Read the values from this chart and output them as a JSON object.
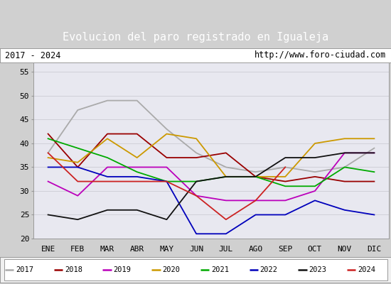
{
  "title": "Evolucion del paro registrado en Igualeja",
  "subtitle_left": "2017 - 2024",
  "subtitle_right": "http://www.foro-ciudad.com",
  "months": [
    "ENE",
    "FEB",
    "MAR",
    "ABR",
    "MAY",
    "JUN",
    "JUL",
    "AGO",
    "SEP",
    "OCT",
    "NOV",
    "DIC"
  ],
  "ylim": [
    20,
    57
  ],
  "yticks": [
    20,
    25,
    30,
    35,
    40,
    45,
    50,
    55
  ],
  "series": {
    "2017": {
      "color": "#aaaaaa",
      "values": [
        38,
        47,
        49,
        49,
        43,
        38,
        35,
        34,
        35,
        34,
        35,
        39
      ]
    },
    "2018": {
      "color": "#990000",
      "values": [
        42,
        35,
        42,
        42,
        37,
        37,
        38,
        33,
        32,
        33,
        32,
        32
      ]
    },
    "2019": {
      "color": "#bb00bb",
      "values": [
        32,
        29,
        35,
        35,
        35,
        29,
        28,
        28,
        28,
        30,
        38,
        38
      ]
    },
    "2020": {
      "color": "#cc9900",
      "values": [
        37,
        36,
        41,
        37,
        42,
        41,
        33,
        33,
        33,
        40,
        41,
        41
      ]
    },
    "2021": {
      "color": "#00aa00",
      "values": [
        41,
        39,
        37,
        34,
        32,
        32,
        33,
        33,
        31,
        31,
        35,
        34
      ]
    },
    "2022": {
      "color": "#0000bb",
      "values": [
        35,
        35,
        33,
        33,
        32,
        21,
        21,
        25,
        25,
        28,
        26,
        25
      ]
    },
    "2023": {
      "color": "#111111",
      "values": [
        25,
        24,
        26,
        26,
        24,
        32,
        33,
        33,
        37,
        37,
        38,
        38
      ]
    },
    "2024": {
      "color": "#cc2222",
      "values": [
        38,
        32,
        32,
        32,
        32,
        29,
        24,
        28,
        35,
        null,
        null,
        null
      ]
    }
  },
  "legend_years": [
    "2017",
    "2018",
    "2019",
    "2020",
    "2021",
    "2022",
    "2023",
    "2024"
  ],
  "title_bg": "#5b9bd5",
  "title_fg": "#ffffff",
  "plot_bg": "#e8e8f0",
  "grid_color": "#d0d0d8"
}
